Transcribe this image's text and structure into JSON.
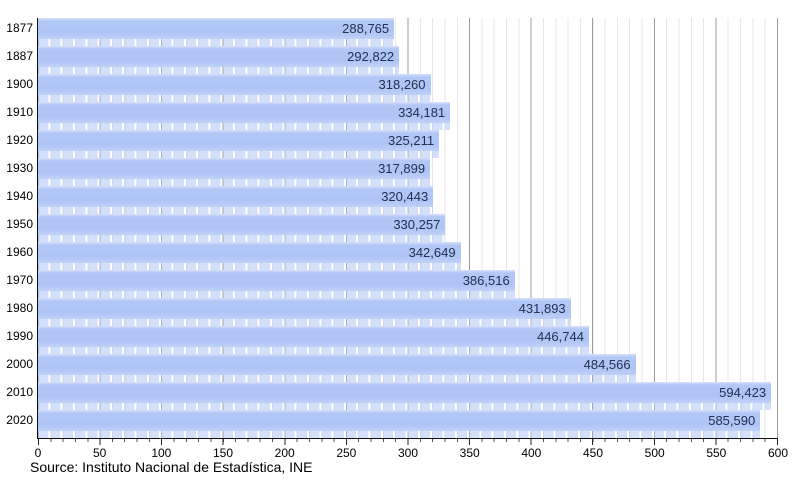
{
  "chart_data": {
    "type": "bar",
    "orientation": "horizontal",
    "title": "",
    "xlabel": "",
    "ylabel": "",
    "xlim": [
      0,
      600
    ],
    "grid": "vertical, minor every 10, major every 50",
    "legend": "none",
    "categories": [
      "1877",
      "1887",
      "1900",
      "1910",
      "1920",
      "1930",
      "1940",
      "1950",
      "1960",
      "1970",
      "1980",
      "1990",
      "2000",
      "2010",
      "2020"
    ],
    "values": [
      288765,
      292822,
      318260,
      334181,
      325211,
      317899,
      320443,
      330257,
      342649,
      386516,
      431893,
      446744,
      484566,
      594423,
      585590
    ],
    "value_labels": [
      "288,765",
      "292,822",
      "318,260",
      "334,181",
      "325,211",
      "317,899",
      "320,443",
      "330,257",
      "342,649",
      "386,516",
      "431,893",
      "446,744",
      "484,566",
      "594,423",
      "585,590"
    ],
    "x_tick_labels": [
      "0",
      "50",
      "100",
      "150",
      "200",
      "250",
      "300",
      "350",
      "400",
      "450",
      "500",
      "550",
      "600"
    ],
    "source": "Source: Instituto Nacional de Estadística, INE",
    "colors": {
      "bar_fill": "#adc4f5",
      "bar_highlight": "#d6e0fa",
      "bar_strip": "#d5e0fb",
      "value_text": "#233150",
      "grid_minor": "#ebe6e6",
      "grid_major": "#9c9c9c",
      "axis": "#111111"
    }
  }
}
